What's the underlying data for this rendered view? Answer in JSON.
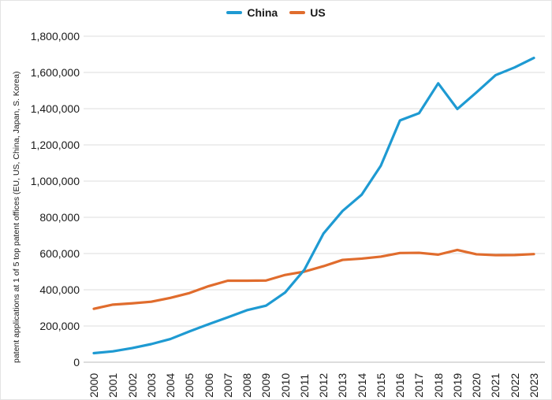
{
  "chart_data": {
    "type": "line",
    "title": "",
    "xlabel": "",
    "ylabel": "patent applications at 1 of 5 top patent offices (EU, US, China, Japan, S. Korea)",
    "x": [
      2000,
      2001,
      2002,
      2003,
      2004,
      2005,
      2006,
      2007,
      2008,
      2009,
      2010,
      2011,
      2012,
      2013,
      2014,
      2015,
      2016,
      2017,
      2018,
      2019,
      2020,
      2021,
      2022,
      2023
    ],
    "series": [
      {
        "name": "China",
        "color": "#1e9ad2",
        "values": [
          50000,
          60000,
          78000,
          100000,
          128000,
          170000,
          210000,
          248000,
          287000,
          312000,
          385000,
          510000,
          710000,
          835000,
          925000,
          1085000,
          1335000,
          1375000,
          1540000,
          1398000,
          1490000,
          1585000,
          1628000,
          1680000
        ]
      },
      {
        "name": "US",
        "color": "#e06c2d",
        "values": [
          295000,
          318000,
          325000,
          334000,
          355000,
          382000,
          420000,
          450000,
          450000,
          451000,
          482000,
          500000,
          530000,
          565000,
          572000,
          583000,
          603000,
          604000,
          594000,
          620000,
          596000,
          591000,
          592000,
          597000
        ]
      }
    ],
    "ylim": [
      0,
      1800000
    ],
    "ytick_step": 200000,
    "ytick_labels": [
      "0",
      "200,000",
      "400,000",
      "600,000",
      "800,000",
      "1,000,000",
      "1,200,000",
      "1,400,000",
      "1,600,000",
      "1,800,000"
    ],
    "grid": "horizontal",
    "legend_position": "top"
  },
  "colors": {
    "grid": "#dcdcdc",
    "baseline": "#d2d2d2",
    "text": "#1a1a1a"
  }
}
